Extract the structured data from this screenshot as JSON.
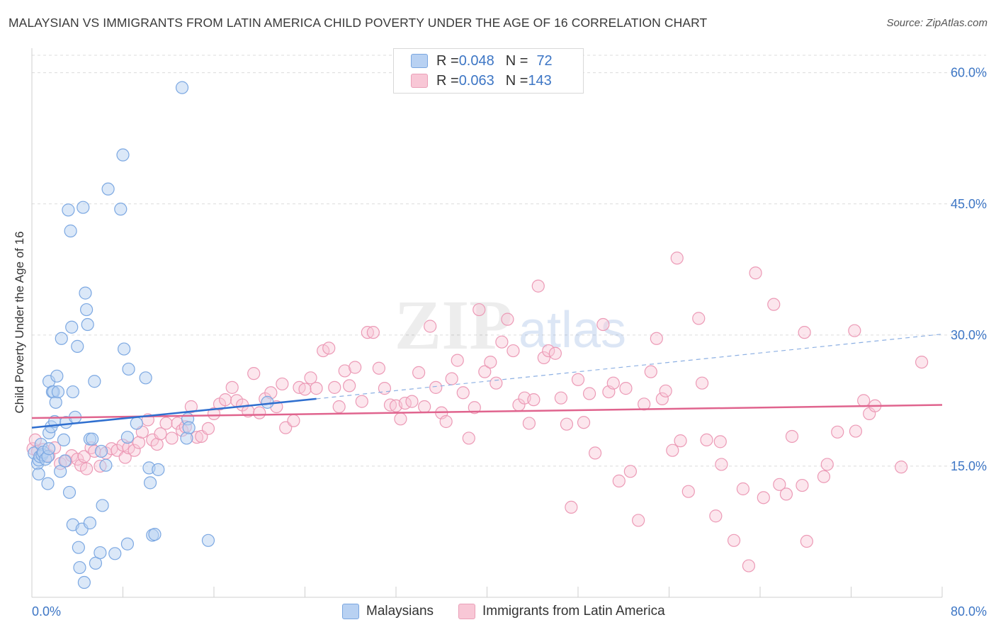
{
  "title": "MALAYSIAN VS IMMIGRANTS FROM LATIN AMERICA CHILD POVERTY UNDER THE AGE OF 16 CORRELATION CHART",
  "source": "Source: ZipAtlas.com",
  "watermark": {
    "zip": "ZIP",
    "atlas": "atlas"
  },
  "legend_top": [
    {
      "r_label": "R = ",
      "r_value": "0.048",
      "n_label": "N = ",
      "n_value": "72"
    },
    {
      "r_label": "R = ",
      "r_value": "0.063",
      "n_label": "N = ",
      "n_value": "143"
    }
  ],
  "legend_bottom": [
    "Malaysians",
    "Immigrants from Latin America"
  ],
  "colors": {
    "blue": "#7ca8e2",
    "blue_fill": "#b8d1f2",
    "blue_line": "#2f6fcf",
    "pink": "#ec9ab6",
    "pink_fill": "#f8c7d6",
    "pink_line": "#e0648e",
    "axis_text": "#3d76c5",
    "grid": "#dcdcdc"
  },
  "chart_data": {
    "type": "scatter",
    "title": "MALAYSIAN VS IMMIGRANTS FROM LATIN AMERICA CHILD POVERTY UNDER THE AGE OF 16 CORRELATION CHART",
    "xlabel": "",
    "ylabel": "Child Poverty Under the Age of 16",
    "xlim": [
      0,
      80
    ],
    "ylim": [
      0,
      62
    ],
    "x_tick_labels": [
      "0.0%",
      "80.0%"
    ],
    "y_ticks": [
      15,
      30,
      45,
      60
    ],
    "y_tick_labels": [
      "15.0%",
      "30.0%",
      "45.0%",
      "60.0%"
    ],
    "grid": true,
    "legend_position": "top-center",
    "series": [
      {
        "name": "Malaysians",
        "color": "#7ca8e2",
        "r": 0.048,
        "n": 72,
        "trend": {
          "x": [
            0,
            25
          ],
          "y": [
            19.4,
            22.7
          ]
        },
        "trend_extension": {
          "x": [
            25,
            80
          ],
          "y": [
            22.7,
            30.1
          ]
        },
        "points": [
          [
            0.2,
            16.5
          ],
          [
            0.5,
            15.3
          ],
          [
            0.6,
            15.7
          ],
          [
            0.6,
            14.1
          ],
          [
            0.7,
            16.1
          ],
          [
            0.8,
            17.5
          ],
          [
            0.9,
            16.3
          ],
          [
            1.0,
            16.6
          ],
          [
            1.2,
            15.8
          ],
          [
            1.4,
            16.1
          ],
          [
            1.4,
            13.0
          ],
          [
            1.5,
            17.0
          ],
          [
            1.5,
            18.8
          ],
          [
            1.5,
            24.7
          ],
          [
            1.7,
            19.5
          ],
          [
            1.8,
            23.5
          ],
          [
            1.9,
            23.5
          ],
          [
            2.0,
            20.1
          ],
          [
            2.1,
            22.3
          ],
          [
            2.2,
            25.3
          ],
          [
            2.3,
            23.5
          ],
          [
            2.5,
            14.4
          ],
          [
            2.6,
            29.6
          ],
          [
            2.8,
            18.0
          ],
          [
            2.9,
            15.6
          ],
          [
            3.0,
            20.0
          ],
          [
            3.2,
            44.3
          ],
          [
            3.3,
            12.0
          ],
          [
            3.4,
            41.9
          ],
          [
            3.5,
            30.9
          ],
          [
            3.6,
            8.3
          ],
          [
            3.6,
            23.5
          ],
          [
            3.8,
            20.6
          ],
          [
            4.0,
            28.7
          ],
          [
            4.1,
            5.7
          ],
          [
            4.2,
            3.4
          ],
          [
            4.4,
            7.8
          ],
          [
            4.5,
            44.6
          ],
          [
            4.6,
            1.7
          ],
          [
            4.7,
            34.8
          ],
          [
            4.8,
            32.9
          ],
          [
            4.9,
            31.2
          ],
          [
            5.1,
            8.5
          ],
          [
            5.1,
            18.1
          ],
          [
            5.3,
            18.1
          ],
          [
            5.5,
            24.7
          ],
          [
            5.6,
            3.9
          ],
          [
            6.0,
            5.1
          ],
          [
            6.1,
            16.7
          ],
          [
            6.2,
            10.5
          ],
          [
            6.5,
            15.1
          ],
          [
            6.7,
            46.7
          ],
          [
            7.3,
            5.0
          ],
          [
            7.8,
            44.4
          ],
          [
            8.0,
            50.6
          ],
          [
            8.1,
            28.4
          ],
          [
            8.4,
            6.1
          ],
          [
            8.4,
            18.3
          ],
          [
            8.5,
            26.1
          ],
          [
            9.2,
            19.9
          ],
          [
            10.0,
            25.1
          ],
          [
            10.3,
            14.8
          ],
          [
            10.4,
            13.1
          ],
          [
            10.6,
            7.1
          ],
          [
            10.8,
            7.2
          ],
          [
            11.1,
            14.6
          ],
          [
            13.2,
            58.3
          ],
          [
            13.6,
            18.2
          ],
          [
            13.7,
            20.4
          ],
          [
            13.8,
            19.4
          ],
          [
            15.5,
            6.5
          ],
          [
            20.7,
            22.3
          ]
        ]
      },
      {
        "name": "Immigrants from Latin America",
        "color": "#ec9ab6",
        "r": 0.063,
        "n": 143,
        "trend": {
          "x": [
            0,
            80
          ],
          "y": [
            20.5,
            22.0
          ]
        },
        "points": [
          [
            0.1,
            17.0
          ],
          [
            0.3,
            18.0
          ],
          [
            0.5,
            16.7
          ],
          [
            1.0,
            16.9
          ],
          [
            1.5,
            16.2
          ],
          [
            2.0,
            17.1
          ],
          [
            2.5,
            15.3
          ],
          [
            3.0,
            15.6
          ],
          [
            3.5,
            16.2
          ],
          [
            4.0,
            15.8
          ],
          [
            4.3,
            15.1
          ],
          [
            4.6,
            16.1
          ],
          [
            4.8,
            14.7
          ],
          [
            5.2,
            17.1
          ],
          [
            5.5,
            16.7
          ],
          [
            6.0,
            15.0
          ],
          [
            6.5,
            16.5
          ],
          [
            7.0,
            17.0
          ],
          [
            7.5,
            16.8
          ],
          [
            8.0,
            17.4
          ],
          [
            8.2,
            16.0
          ],
          [
            8.5,
            17.1
          ],
          [
            9.0,
            16.8
          ],
          [
            9.4,
            17.7
          ],
          [
            9.7,
            18.9
          ],
          [
            10.2,
            20.3
          ],
          [
            10.6,
            18.0
          ],
          [
            11.0,
            17.5
          ],
          [
            11.3,
            18.7
          ],
          [
            11.8,
            19.9
          ],
          [
            12.3,
            18.2
          ],
          [
            12.8,
            19.9
          ],
          [
            13.2,
            19.1
          ],
          [
            13.5,
            19.5
          ],
          [
            14.0,
            21.8
          ],
          [
            14.5,
            18.3
          ],
          [
            14.9,
            18.4
          ],
          [
            15.5,
            19.3
          ],
          [
            16.0,
            21.0
          ],
          [
            16.5,
            22.1
          ],
          [
            17.0,
            22.6
          ],
          [
            17.6,
            24.0
          ],
          [
            18.0,
            22.5
          ],
          [
            18.5,
            22.0
          ],
          [
            19.0,
            21.3
          ],
          [
            19.5,
            25.6
          ],
          [
            20.0,
            21.1
          ],
          [
            20.5,
            22.7
          ],
          [
            21.0,
            23.4
          ],
          [
            21.5,
            21.8
          ],
          [
            22.0,
            24.4
          ],
          [
            22.3,
            19.4
          ],
          [
            23.0,
            20.2
          ],
          [
            23.5,
            24.0
          ],
          [
            24.0,
            23.8
          ],
          [
            24.5,
            25.1
          ],
          [
            25.0,
            23.9
          ],
          [
            25.6,
            28.2
          ],
          [
            26.1,
            28.5
          ],
          [
            26.6,
            24.0
          ],
          [
            27.0,
            21.8
          ],
          [
            27.5,
            25.9
          ],
          [
            27.9,
            24.2
          ],
          [
            28.4,
            26.3
          ],
          [
            29.0,
            22.4
          ],
          [
            29.5,
            30.3
          ],
          [
            30.0,
            30.3
          ],
          [
            30.5,
            26.2
          ],
          [
            31.0,
            23.9
          ],
          [
            31.5,
            22.0
          ],
          [
            32.0,
            21.9
          ],
          [
            32.4,
            20.4
          ],
          [
            32.8,
            22.2
          ],
          [
            33.4,
            22.4
          ],
          [
            34.0,
            25.7
          ],
          [
            34.5,
            21.8
          ],
          [
            35.0,
            31.0
          ],
          [
            35.5,
            24.0
          ],
          [
            36.0,
            21.1
          ],
          [
            36.4,
            20.1
          ],
          [
            36.9,
            25.0
          ],
          [
            37.4,
            27.1
          ],
          [
            37.9,
            23.4
          ],
          [
            38.4,
            18.2
          ],
          [
            38.9,
            21.7
          ],
          [
            39.3,
            32.9
          ],
          [
            39.8,
            25.8
          ],
          [
            40.3,
            26.9
          ],
          [
            40.8,
            24.5
          ],
          [
            41.3,
            29.2
          ],
          [
            41.8,
            31.8
          ],
          [
            42.3,
            28.2
          ],
          [
            42.8,
            22.0
          ],
          [
            43.3,
            22.8
          ],
          [
            43.7,
            19.9
          ],
          [
            44.1,
            22.6
          ],
          [
            44.5,
            35.6
          ],
          [
            45.0,
            27.4
          ],
          [
            45.4,
            28.2
          ],
          [
            46.0,
            27.9
          ],
          [
            46.5,
            22.8
          ],
          [
            47.0,
            19.8
          ],
          [
            47.4,
            10.3
          ],
          [
            48.0,
            24.9
          ],
          [
            48.5,
            20.0
          ],
          [
            49.0,
            23.3
          ],
          [
            49.5,
            16.5
          ],
          [
            50.2,
            31.2
          ],
          [
            50.7,
            23.5
          ],
          [
            51.1,
            24.5
          ],
          [
            51.6,
            13.3
          ],
          [
            52.2,
            23.9
          ],
          [
            52.6,
            14.4
          ],
          [
            53.3,
            8.8
          ],
          [
            53.8,
            22.1
          ],
          [
            54.4,
            25.8
          ],
          [
            54.9,
            29.6
          ],
          [
            55.4,
            22.7
          ],
          [
            55.7,
            23.6
          ],
          [
            56.3,
            16.8
          ],
          [
            56.7,
            38.8
          ],
          [
            57.0,
            17.9
          ],
          [
            57.7,
            12.1
          ],
          [
            58.6,
            31.9
          ],
          [
            58.9,
            24.5
          ],
          [
            59.3,
            18.0
          ],
          [
            60.1,
            9.3
          ],
          [
            60.5,
            17.8
          ],
          [
            60.6,
            15.2
          ],
          [
            61.7,
            6.5
          ],
          [
            62.5,
            12.4
          ],
          [
            63.0,
            3.6
          ],
          [
            63.6,
            37.1
          ],
          [
            64.3,
            11.4
          ],
          [
            65.2,
            33.5
          ],
          [
            65.7,
            12.9
          ],
          [
            66.3,
            11.8
          ],
          [
            66.8,
            18.4
          ],
          [
            67.7,
            12.8
          ],
          [
            67.9,
            30.3
          ],
          [
            68.1,
            6.4
          ],
          [
            69.6,
            13.8
          ],
          [
            69.9,
            15.2
          ],
          [
            70.8,
            18.9
          ],
          [
            72.3,
            30.5
          ],
          [
            72.4,
            19.0
          ],
          [
            73.1,
            22.5
          ],
          [
            73.6,
            21.0
          ],
          [
            74.1,
            21.9
          ],
          [
            76.4,
            14.9
          ],
          [
            78.2,
            26.9
          ]
        ]
      }
    ]
  }
}
